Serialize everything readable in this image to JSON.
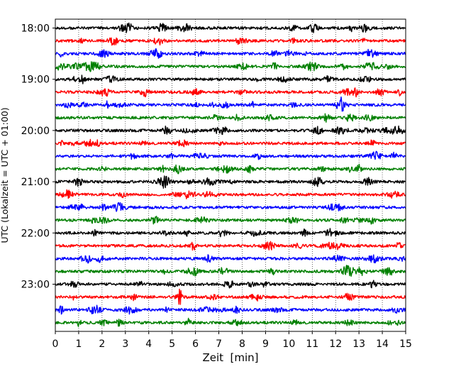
{
  "chart_data": {
    "type": "line",
    "subtype": "helicorder",
    "xlabel": "Zeit  [min]",
    "ylabel": "UTC (Lokalzeit = UTC + 01:00)",
    "x_ticks": [
      "0",
      "1",
      "2",
      "3",
      "4",
      "5",
      "6",
      "7",
      "8",
      "9",
      "10",
      "11",
      "12",
      "13",
      "14",
      "15"
    ],
    "xlim": [
      0,
      15
    ],
    "y_tick_labels": [
      "18:00",
      "19:00",
      "20:00",
      "21:00",
      "22:00",
      "23:00"
    ],
    "minutes_per_trace": 15,
    "trace_start": "18:00",
    "trace_count": 24,
    "trace_colors": [
      "#000000",
      "#ff0000",
      "#0000ff",
      "#008000"
    ],
    "vertical_grid": "dotted"
  }
}
